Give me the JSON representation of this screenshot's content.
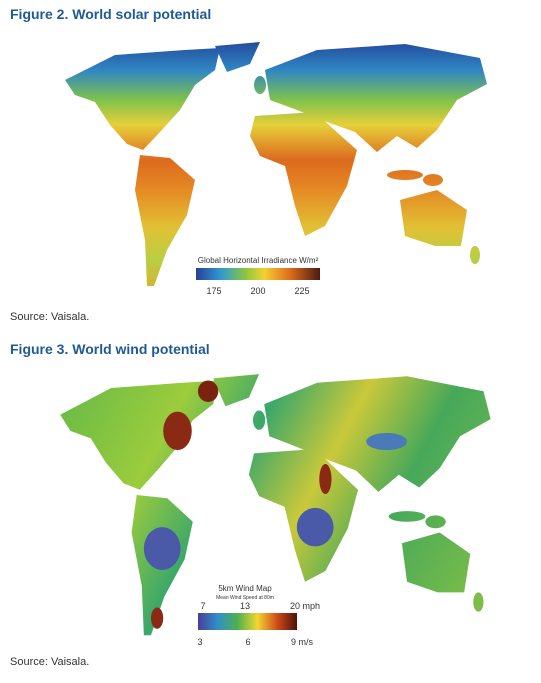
{
  "figures": [
    {
      "title": "Figure 2. World solar potential",
      "legend": {
        "title": "Global Horizontal Irradiance W/m²",
        "ticks": [
          "175",
          "200",
          "225"
        ]
      },
      "source": "Source: Vaisala."
    },
    {
      "title": "Figure 3. World wind potential",
      "legend": {
        "title": "5km Wind Map",
        "subtitle": "Mean Wind Speed at 80m",
        "ticks_top": [
          "7",
          "13",
          "20 mph"
        ],
        "ticks_bottom": [
          "3",
          "6",
          "9 m/s"
        ]
      },
      "source": "Source: Vaisala."
    }
  ]
}
